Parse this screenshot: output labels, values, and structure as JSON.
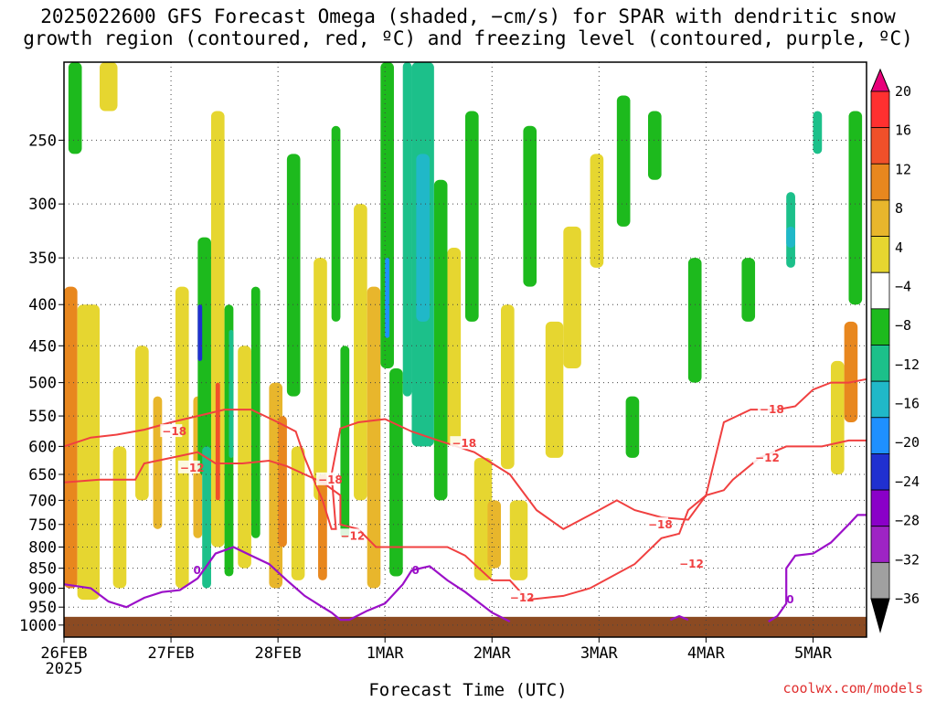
{
  "title_lines": [
    "2025022600 GFS Forecast Omega (shaded, −cm/s) for SPAR with dendritic snow",
    "growth region (contoured, red, ºC) and freezing level (contoured, purple, ºC)"
  ],
  "credit": "coolwx.com/models",
  "chart_data": {
    "type": "heatmap",
    "xlabel": "Forecast Time (UTC)",
    "ylabel": "",
    "x_ticks": [
      {
        "label": "26FEB",
        "sublabel": "2025",
        "hour": 0
      },
      {
        "label": "27FEB",
        "hour": 24
      },
      {
        "label": "28FEB",
        "hour": 48
      },
      {
        "label": "1MAR",
        "hour": 72
      },
      {
        "label": "2MAR",
        "hour": 96
      },
      {
        "label": "3MAR",
        "hour": 120
      },
      {
        "label": "4MAR",
        "hour": 144
      },
      {
        "label": "5MAR",
        "hour": 168
      }
    ],
    "xlim": [
      0,
      180
    ],
    "y_ticks": [
      "250",
      "300",
      "350",
      "400",
      "450",
      "500",
      "550",
      "600",
      "650",
      "700",
      "750",
      "800",
      "850",
      "900",
      "950",
      "1000"
    ],
    "y_tick_values": [
      250,
      300,
      350,
      400,
      450,
      500,
      550,
      600,
      650,
      700,
      750,
      800,
      850,
      900,
      950,
      1000
    ],
    "ylim": [
      200,
      1035
    ],
    "y_scale": "log-pressure",
    "grid": true,
    "colorbar": {
      "labels": [
        "20",
        "16",
        "12",
        "8",
        "4",
        "−4",
        "−8",
        "−12",
        "−16",
        "−20",
        "−24",
        "−28",
        "−32",
        "−36"
      ],
      "colors": [
        "#e8007a",
        "#ff3030",
        "#f0502a",
        "#e8871e",
        "#e8b62c",
        "#e6d630",
        "#ffffff",
        "#1dba1d",
        "#1cc08a",
        "#20b8c8",
        "#1e90ff",
        "#2030d0",
        "#8a00c8",
        "#9e24c4",
        "#a0a0a0",
        "#000000"
      ]
    },
    "shading": [
      {
        "h0": 0,
        "h1": 2,
        "p0": 470,
        "p1": 700,
        "color": "#f0502a"
      },
      {
        "h0": 0,
        "h1": 3,
        "p0": 380,
        "p1": 900,
        "color": "#e8871e"
      },
      {
        "h0": 3,
        "h1": 8,
        "p0": 400,
        "p1": 930,
        "color": "#e6d630"
      },
      {
        "h0": 1,
        "h1": 4,
        "p0": 200,
        "p1": 260,
        "color": "#1dba1d"
      },
      {
        "h0": 8,
        "h1": 12,
        "p0": 200,
        "p1": 230,
        "color": "#e6d630"
      },
      {
        "h0": 11,
        "h1": 14,
        "p0": 600,
        "p1": 900,
        "color": "#e6d630"
      },
      {
        "h0": 16,
        "h1": 19,
        "p0": 450,
        "p1": 700,
        "color": "#e6d630"
      },
      {
        "h0": 20,
        "h1": 22,
        "p0": 520,
        "p1": 760,
        "color": "#e8b62c"
      },
      {
        "h0": 25,
        "h1": 28,
        "p0": 380,
        "p1": 900,
        "color": "#e6d630"
      },
      {
        "h0": 29,
        "h1": 31,
        "p0": 520,
        "p1": 780,
        "color": "#e8b62c"
      },
      {
        "h0": 30,
        "h1": 33,
        "p0": 330,
        "p1": 650,
        "color": "#1dba1d"
      },
      {
        "h0": 30,
        "h1": 31,
        "p0": 400,
        "p1": 470,
        "color": "#2030d0"
      },
      {
        "h0": 31,
        "h1": 33,
        "p0": 600,
        "p1": 900,
        "color": "#1cc08a"
      },
      {
        "h0": 33,
        "h1": 36,
        "p0": 230,
        "p1": 800,
        "color": "#e6d630"
      },
      {
        "h0": 34,
        "h1": 35,
        "p0": 500,
        "p1": 700,
        "color": "#f0502a"
      },
      {
        "h0": 36,
        "h1": 38,
        "p0": 400,
        "p1": 870,
        "color": "#1dba1d"
      },
      {
        "h0": 37,
        "h1": 38,
        "p0": 430,
        "p1": 620,
        "color": "#1cc08a"
      },
      {
        "h0": 39,
        "h1": 42,
        "p0": 450,
        "p1": 850,
        "color": "#e6d630"
      },
      {
        "h0": 42,
        "h1": 44,
        "p0": 380,
        "p1": 780,
        "color": "#1dba1d"
      },
      {
        "h0": 46,
        "h1": 49,
        "p0": 500,
        "p1": 900,
        "color": "#e8b62c"
      },
      {
        "h0": 48,
        "h1": 50,
        "p0": 550,
        "p1": 800,
        "color": "#e8871e"
      },
      {
        "h0": 50,
        "h1": 53,
        "p0": 260,
        "p1": 520,
        "color": "#1dba1d"
      },
      {
        "h0": 51,
        "h1": 54,
        "p0": 600,
        "p1": 880,
        "color": "#e6d630"
      },
      {
        "h0": 56,
        "h1": 59,
        "p0": 350,
        "p1": 700,
        "color": "#e6d630"
      },
      {
        "h0": 57,
        "h1": 59,
        "p0": 650,
        "p1": 880,
        "color": "#e8871e"
      },
      {
        "h0": 60,
        "h1": 62,
        "p0": 240,
        "p1": 420,
        "color": "#1dba1d"
      },
      {
        "h0": 62,
        "h1": 64,
        "p0": 450,
        "p1": 780,
        "color": "#1dba1d"
      },
      {
        "h0": 65,
        "h1": 68,
        "p0": 300,
        "p1": 700,
        "color": "#e6d630"
      },
      {
        "h0": 68,
        "h1": 71,
        "p0": 380,
        "p1": 900,
        "color": "#e8b62c"
      },
      {
        "h0": 71,
        "h1": 74,
        "p0": 200,
        "p1": 480,
        "color": "#1dba1d"
      },
      {
        "h0": 72,
        "h1": 73,
        "p0": 350,
        "p1": 440,
        "color": "#1e90ff"
      },
      {
        "h0": 73,
        "h1": 76,
        "p0": 480,
        "p1": 870,
        "color": "#1dba1d"
      },
      {
        "h0": 76,
        "h1": 78,
        "p0": 200,
        "p1": 520,
        "color": "#1cc08a"
      },
      {
        "h0": 78,
        "h1": 83,
        "p0": 200,
        "p1": 600,
        "color": "#1cc08a"
      },
      {
        "h0": 79,
        "h1": 82,
        "p0": 260,
        "p1": 420,
        "color": "#20b8c8"
      },
      {
        "h0": 83,
        "h1": 86,
        "p0": 280,
        "p1": 700,
        "color": "#1dba1d"
      },
      {
        "h0": 86,
        "h1": 89,
        "p0": 340,
        "p1": 600,
        "color": "#e6d630"
      },
      {
        "h0": 90,
        "h1": 93,
        "p0": 230,
        "p1": 420,
        "color": "#1dba1d"
      },
      {
        "h0": 92,
        "h1": 96,
        "p0": 620,
        "p1": 880,
        "color": "#e6d630"
      },
      {
        "h0": 95,
        "h1": 98,
        "p0": 700,
        "p1": 850,
        "color": "#e8b62c"
      },
      {
        "h0": 98,
        "h1": 101,
        "p0": 400,
        "p1": 640,
        "color": "#e6d630"
      },
      {
        "h0": 100,
        "h1": 104,
        "p0": 700,
        "p1": 880,
        "color": "#e6d630"
      },
      {
        "h0": 103,
        "h1": 106,
        "p0": 240,
        "p1": 380,
        "color": "#1dba1d"
      },
      {
        "h0": 108,
        "h1": 112,
        "p0": 420,
        "p1": 620,
        "color": "#e6d630"
      },
      {
        "h0": 112,
        "h1": 116,
        "p0": 320,
        "p1": 480,
        "color": "#e6d630"
      },
      {
        "h0": 118,
        "h1": 121,
        "p0": 260,
        "p1": 360,
        "color": "#e6d630"
      },
      {
        "h0": 124,
        "h1": 127,
        "p0": 220,
        "p1": 320,
        "color": "#1dba1d"
      },
      {
        "h0": 126,
        "h1": 129,
        "p0": 520,
        "p1": 620,
        "color": "#1dba1d"
      },
      {
        "h0": 131,
        "h1": 134,
        "p0": 230,
        "p1": 280,
        "color": "#1dba1d"
      },
      {
        "h0": 140,
        "h1": 143,
        "p0": 350,
        "p1": 500,
        "color": "#1dba1d"
      },
      {
        "h0": 152,
        "h1": 155,
        "p0": 350,
        "p1": 420,
        "color": "#1dba1d"
      },
      {
        "h0": 162,
        "h1": 164,
        "p0": 290,
        "p1": 360,
        "color": "#1cc08a"
      },
      {
        "h0": 162,
        "h1": 164,
        "p0": 320,
        "p1": 340,
        "color": "#20b8c8"
      },
      {
        "h0": 168,
        "h1": 170,
        "p0": 230,
        "p1": 260,
        "color": "#1cc08a"
      },
      {
        "h0": 172,
        "h1": 175,
        "p0": 470,
        "p1": 650,
        "color": "#e6d630"
      },
      {
        "h0": 175,
        "h1": 178,
        "p0": 420,
        "p1": 560,
        "color": "#e8871e"
      },
      {
        "h0": 176,
        "h1": 179,
        "p0": 230,
        "p1": 400,
        "color": "#1dba1d"
      }
    ],
    "contours_dgz": {
      "color": "#f04040",
      "lines": [
        {
          "label": "−18",
          "label_at": [
            22,
            575
          ],
          "points": [
            [
              0,
              600
            ],
            [
              6,
              585
            ],
            [
              12,
              580
            ],
            [
              18,
              572
            ],
            [
              24,
              560
            ],
            [
              30,
              550
            ],
            [
              36,
              540
            ],
            [
              42,
              540
            ],
            [
              48,
              560
            ],
            [
              52,
              575
            ],
            [
              54,
              620
            ],
            [
              56,
              660
            ],
            [
              58,
              700
            ],
            [
              60,
              760
            ],
            [
              61,
              760
            ],
            [
              60,
              650
            ],
            [
              62,
              570
            ],
            [
              66,
              560
            ],
            [
              72,
              555
            ],
            [
              78,
              575
            ],
            [
              84,
              590
            ],
            [
              92,
              610
            ],
            [
              100,
              650
            ],
            [
              106,
              720
            ],
            [
              112,
              760
            ],
            [
              120,
              720
            ],
            [
              124,
              700
            ],
            [
              128,
              720
            ],
            [
              134,
              735
            ],
            [
              140,
              740
            ],
            [
              144,
              690
            ],
            [
              148,
              560
            ],
            [
              154,
              540
            ],
            [
              160,
              540
            ],
            [
              164,
              535
            ],
            [
              168,
              510
            ],
            [
              172,
              500
            ],
            [
              176,
              500
            ],
            [
              180,
              495
            ]
          ]
        },
        {
          "label": "−12",
          "label_at": [
            26,
            638
          ],
          "points": [
            [
              0,
              665
            ],
            [
              8,
              660
            ],
            [
              16,
              660
            ],
            [
              18,
              630
            ],
            [
              24,
              620
            ],
            [
              30,
              610
            ],
            [
              34,
              630
            ],
            [
              40,
              630
            ],
            [
              46,
              625
            ],
            [
              50,
              635
            ],
            [
              54,
              650
            ],
            [
              58,
              665
            ],
            [
              62,
              690
            ],
            [
              62,
              750
            ],
            [
              66,
              760
            ],
            [
              70,
              800
            ],
            [
              74,
              800
            ],
            [
              80,
              800
            ],
            [
              86,
              800
            ],
            [
              90,
              820
            ],
            [
              96,
              880
            ],
            [
              100,
              880
            ],
            [
              104,
              930
            ],
            [
              112,
              920
            ],
            [
              118,
              900
            ],
            [
              128,
              840
            ],
            [
              134,
              780
            ],
            [
              138,
              770
            ],
            [
              140,
              720
            ],
            [
              144,
              690
            ],
            [
              148,
              680
            ],
            [
              150,
              660
            ],
            [
              156,
              620
            ],
            [
              162,
              600
            ],
            [
              170,
              600
            ],
            [
              176,
              590
            ],
            [
              180,
              590
            ]
          ]
        }
      ],
      "labels": [
        {
          "text": "−18",
          "hour": 22,
          "p": 575
        },
        {
          "text": "−12",
          "hour": 26,
          "p": 638
        },
        {
          "text": "−18",
          "hour": 57,
          "p": 660
        },
        {
          "text": "−12",
          "hour": 62,
          "p": 775
        },
        {
          "text": "−18",
          "hour": 87,
          "p": 595
        },
        {
          "text": "−12",
          "hour": 100,
          "p": 925
        },
        {
          "text": "−18",
          "hour": 131,
          "p": 750
        },
        {
          "text": "−12",
          "hour": 138,
          "p": 840
        },
        {
          "text": "−18",
          "hour": 156,
          "p": 540
        },
        {
          "text": "−12",
          "hour": 155,
          "p": 620
        }
      ]
    },
    "contours_freezing": {
      "color": "#9b10c8",
      "label": "0",
      "points": [
        [
          0,
          890
        ],
        [
          6,
          900
        ],
        [
          10,
          935
        ],
        [
          14,
          950
        ],
        [
          18,
          925
        ],
        [
          22,
          910
        ],
        [
          26,
          905
        ],
        [
          30,
          875
        ],
        [
          34,
          815
        ],
        [
          38,
          800
        ],
        [
          42,
          820
        ],
        [
          46,
          840
        ],
        [
          50,
          880
        ],
        [
          54,
          920
        ],
        [
          58,
          950
        ],
        [
          60,
          965
        ],
        [
          62,
          985
        ],
        [
          64,
          985
        ],
        [
          68,
          960
        ],
        [
          72,
          940
        ],
        [
          76,
          890
        ],
        [
          78,
          855
        ],
        [
          82,
          845
        ],
        [
          86,
          880
        ],
        [
          90,
          910
        ],
        [
          96,
          965
        ],
        [
          100,
          990
        ]
      ],
      "points2": [
        [
          136,
          985
        ],
        [
          138,
          975
        ],
        [
          140,
          985
        ]
      ],
      "points3": [
        [
          158,
          990
        ],
        [
          160,
          975
        ],
        [
          162,
          940
        ],
        [
          162,
          850
        ],
        [
          164,
          820
        ],
        [
          168,
          815
        ],
        [
          172,
          790
        ],
        [
          176,
          750
        ],
        [
          178,
          730
        ],
        [
          180,
          730
        ]
      ],
      "labels": [
        {
          "text": "0",
          "hour": 29,
          "p": 855
        },
        {
          "text": "0",
          "hour": 78,
          "p": 855
        },
        {
          "text": "0",
          "hour": 162,
          "p": 930
        }
      ]
    }
  }
}
